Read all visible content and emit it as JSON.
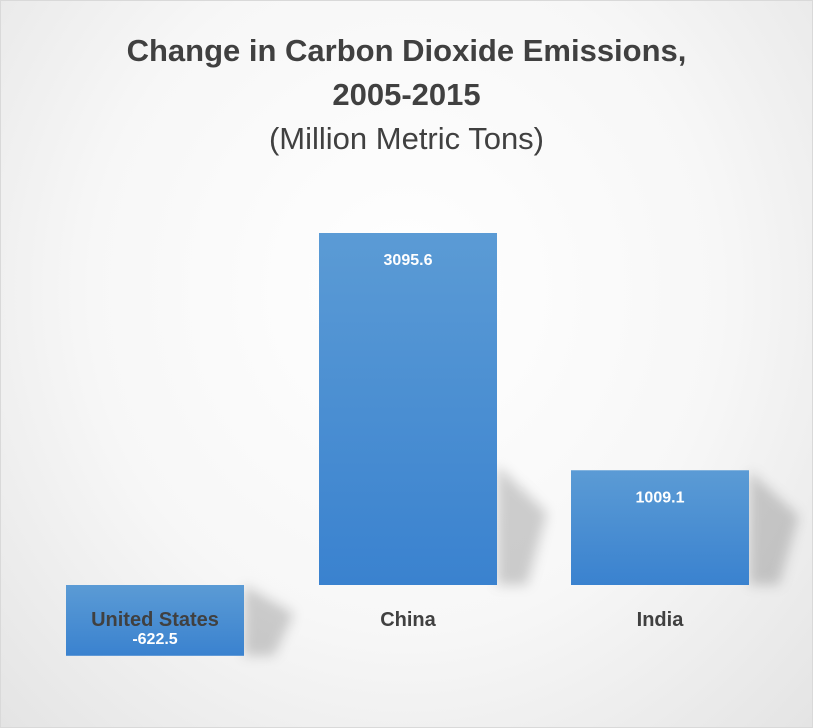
{
  "chart_data": {
    "type": "bar",
    "title": "Change in Carbon Dioxide Emissions, 2005-2015",
    "title_lines": [
      "Change in Carbon Dioxide Emissions,",
      "2005-2015"
    ],
    "subtitle": "(Million Metric Tons)",
    "categories": [
      "United States",
      "China",
      "India"
    ],
    "values": [
      -622.5,
      3095.6,
      1009.1
    ],
    "value_labels": [
      "-622.5",
      "3095.6",
      "1009.1"
    ],
    "xlabel": "",
    "ylabel": "",
    "ylim": [
      -622.5,
      3095.6
    ],
    "grid": false,
    "legend": "none",
    "colors": {
      "bar_top": "#5b9bd5",
      "bar_bottom": "#3a82cf",
      "text": "#404040",
      "label": "#ffffff"
    }
  }
}
